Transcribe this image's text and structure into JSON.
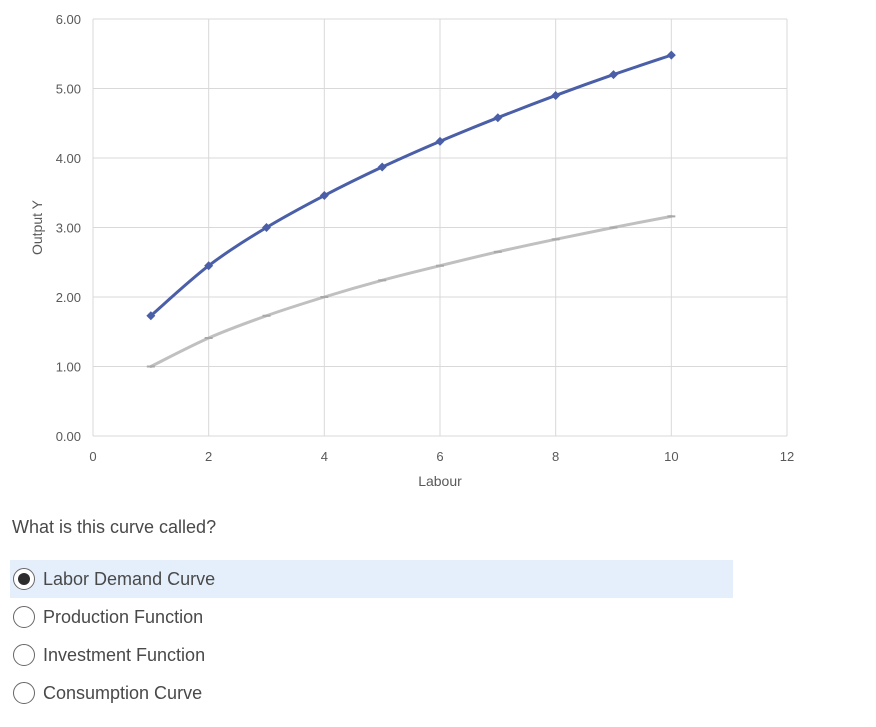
{
  "chart_data": {
    "type": "line",
    "xlabel": "Labour",
    "ylabel": "Output Y",
    "xlim": [
      0,
      12
    ],
    "ylim": [
      0,
      6
    ],
    "x_ticks": [
      "0",
      "2",
      "4",
      "6",
      "8",
      "10",
      "12"
    ],
    "y_ticks": [
      "0.00",
      "1.00",
      "2.00",
      "3.00",
      "4.00",
      "5.00",
      "6.00"
    ],
    "grid": true,
    "series": [
      {
        "color": "#4a5fa8",
        "marker": "diamond",
        "x": [
          1,
          2,
          3,
          4,
          5,
          6,
          7,
          8,
          9,
          10
        ],
        "y": [
          1.73,
          2.45,
          3.0,
          3.46,
          3.87,
          4.24,
          4.58,
          4.9,
          5.2,
          5.48
        ]
      },
      {
        "color": "#c0c0c0",
        "marker": "dash",
        "x": [
          1,
          2,
          3,
          4,
          5,
          6,
          7,
          8,
          9,
          10
        ],
        "y": [
          1.0,
          1.41,
          1.73,
          2.0,
          2.24,
          2.45,
          2.65,
          2.83,
          3.0,
          3.16
        ]
      }
    ]
  },
  "question": {
    "text": "What is this curve called?",
    "options": [
      {
        "label": "Labor Demand Curve",
        "selected": true
      },
      {
        "label": "Production Function",
        "selected": false
      },
      {
        "label": "Investment Function",
        "selected": false
      },
      {
        "label": "Consumption Curve",
        "selected": false
      }
    ]
  }
}
